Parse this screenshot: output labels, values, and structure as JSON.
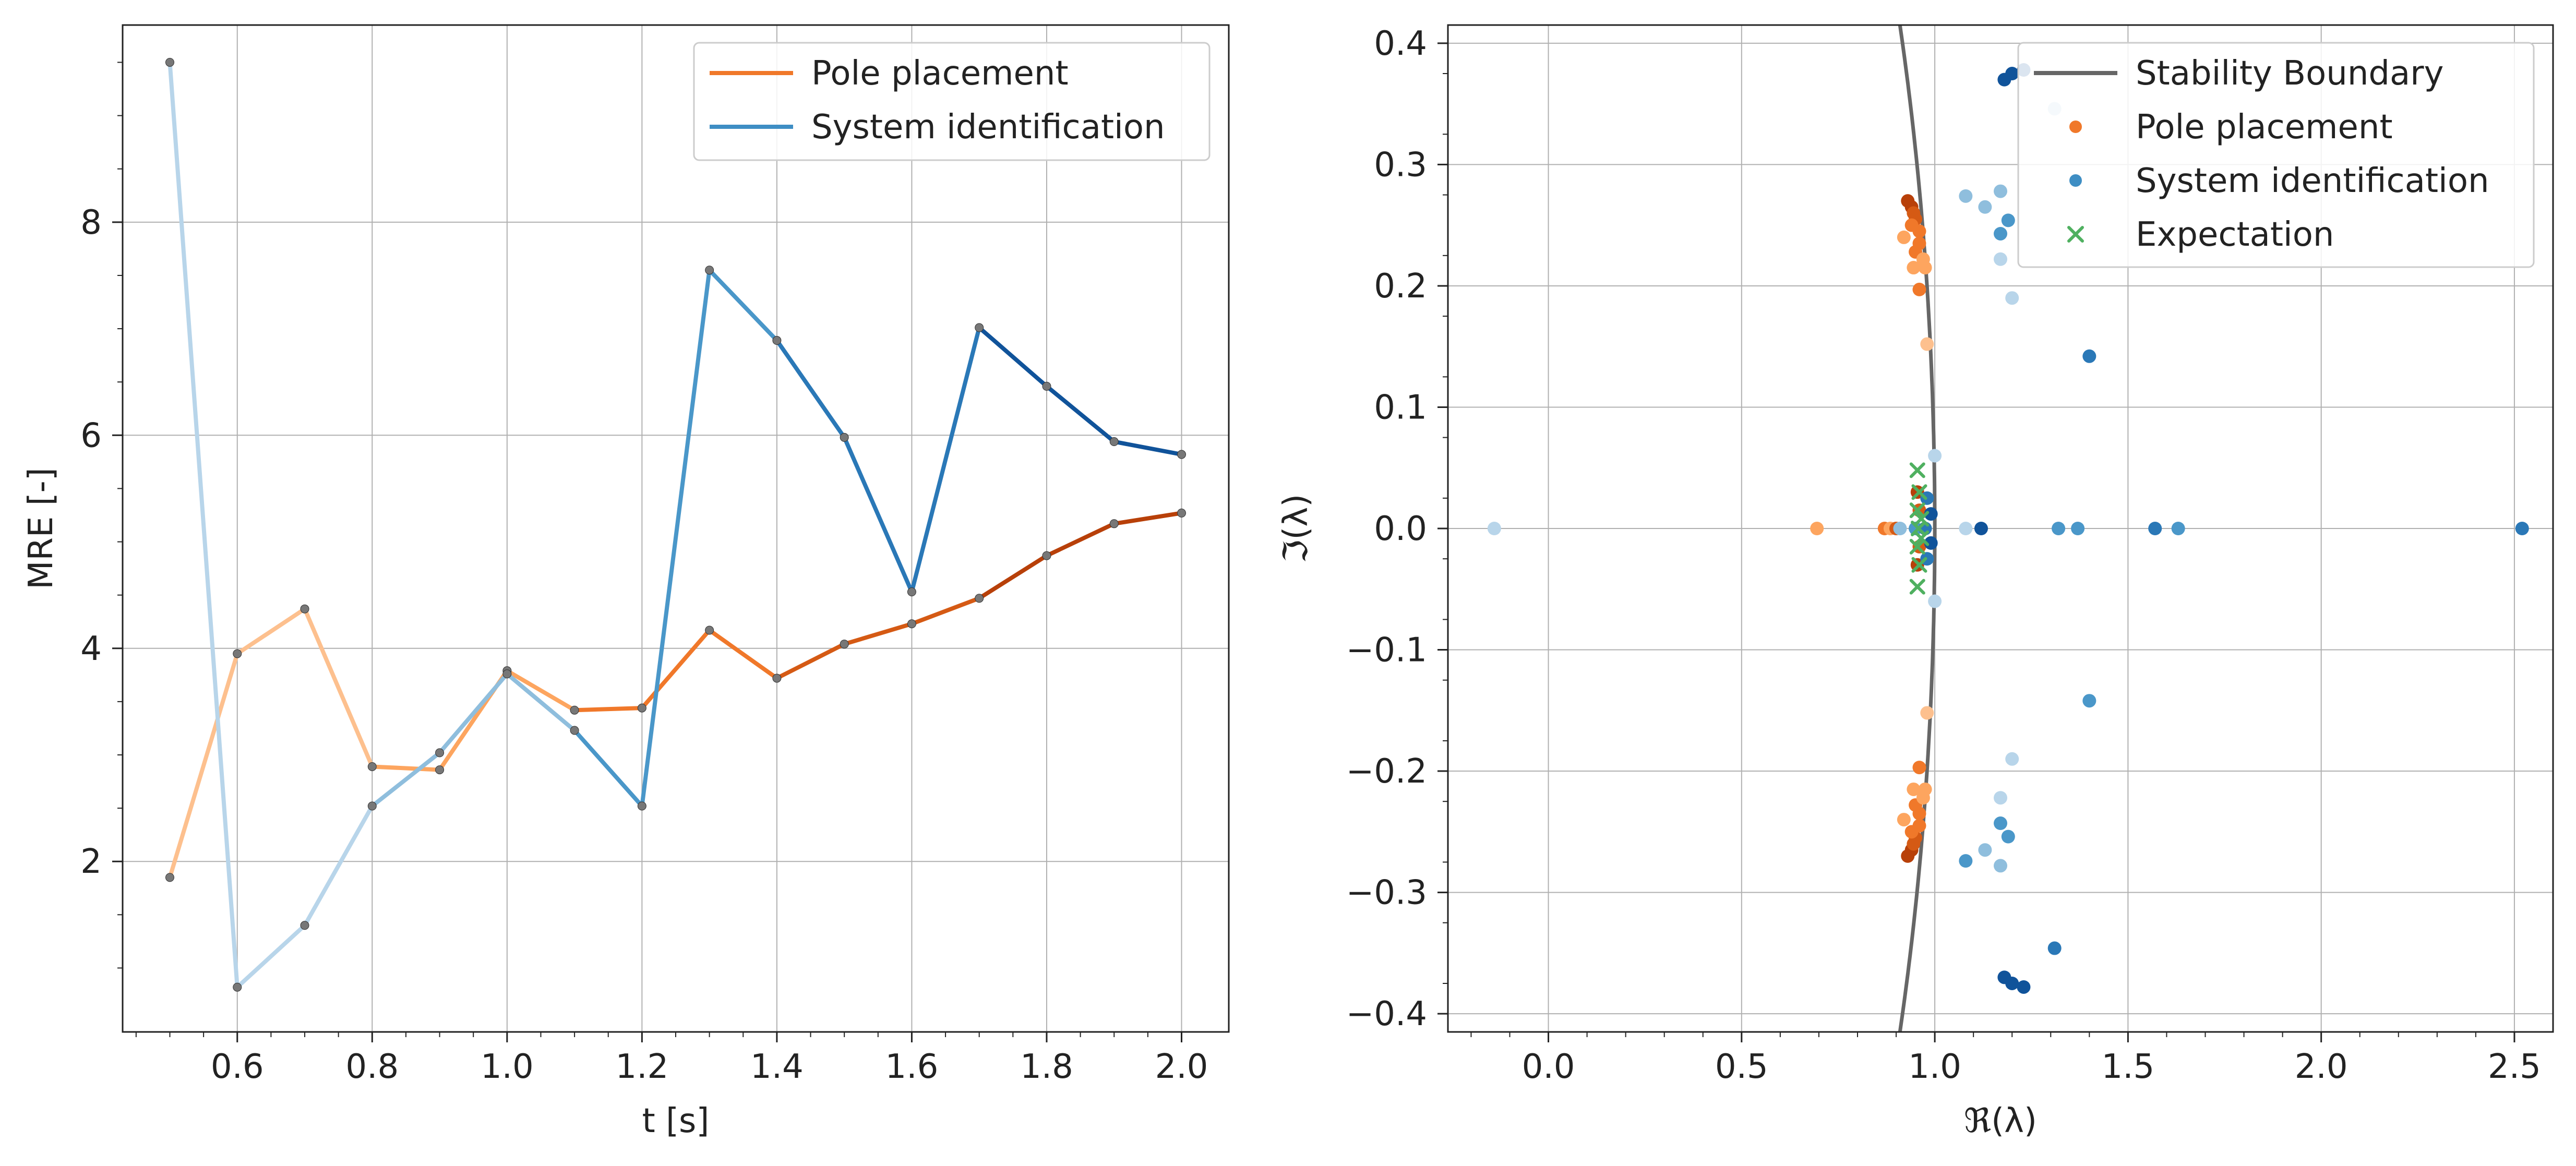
{
  "colors": {
    "pole": "#f0782a",
    "sysid": "#3e8ec4",
    "boundary": "#666666",
    "expect": "#4fb060",
    "pole_grad": [
      "#fdc08e",
      "#fda55f",
      "#f0782a",
      "#d55a14",
      "#b84009"
    ],
    "sysid_grad": [
      "#b8d5ea",
      "#8fbedd",
      "#4a97c9",
      "#2a78b7",
      "#10539a"
    ]
  },
  "chart_data": [
    {
      "type": "line",
      "xlabel": "t [s]",
      "ylabel": "MRE [-]",
      "xlim": [
        0.43,
        2.07
      ],
      "ylim": [
        0.4,
        9.85
      ],
      "xticks": [
        "0.6",
        "0.8",
        "1.0",
        "1.2",
        "1.4",
        "1.6",
        "1.8",
        "2.0"
      ],
      "yticks": [
        "2",
        "4",
        "6",
        "8"
      ],
      "grid": true,
      "legend_position": "top-right",
      "x": [
        0.5,
        0.6,
        0.7,
        0.8,
        0.9,
        1.0,
        1.1,
        1.2,
        1.3,
        1.4,
        1.5,
        1.6,
        1.7,
        1.8,
        1.9,
        2.0
      ],
      "series": [
        {
          "name": "Pole placement",
          "values": [
            1.85,
            3.95,
            4.37,
            2.89,
            2.86,
            3.79,
            3.42,
            3.44,
            4.17,
            3.72,
            4.04,
            4.23,
            4.47,
            4.87,
            5.17,
            5.27
          ]
        },
        {
          "name": "System identification",
          "values": [
            9.5,
            0.82,
            1.4,
            2.52,
            3.02,
            3.76,
            3.23,
            2.52,
            7.55,
            6.89,
            5.98,
            4.53,
            7.01,
            6.46,
            5.94,
            5.82
          ]
        }
      ]
    },
    {
      "type": "scatter",
      "xlabel": "ℜ(λ)",
      "ylabel": "ℑ(λ)",
      "xlim": [
        -0.26,
        2.6
      ],
      "ylim": [
        -0.415,
        0.415
      ],
      "xticks": [
        "0.0",
        "0.5",
        "1.0",
        "1.5",
        "2.0",
        "2.5"
      ],
      "yticks": [
        "−0.4",
        "−0.3",
        "−0.2",
        "−0.1",
        "0.0",
        "0.1",
        "0.2",
        "0.3",
        "0.4"
      ],
      "grid": true,
      "legend_position": "top-right",
      "legend": [
        "Stability Boundary",
        "Pole placement",
        "System identification",
        "Expectation"
      ],
      "boundary_radius": 1.0,
      "pole_placement": [
        [
          0.93,
          0.27,
          4
        ],
        [
          0.94,
          0.265,
          4
        ],
        [
          0.945,
          0.26,
          3
        ],
        [
          0.95,
          0.255,
          3
        ],
        [
          0.94,
          0.25,
          2
        ],
        [
          0.96,
          0.245,
          2
        ],
        [
          0.92,
          0.24,
          1
        ],
        [
          0.96,
          0.235,
          2
        ],
        [
          0.95,
          0.228,
          2
        ],
        [
          0.97,
          0.222,
          1
        ],
        [
          0.945,
          0.215,
          1
        ],
        [
          0.975,
          0.215,
          1
        ],
        [
          0.96,
          0.197,
          2
        ],
        [
          0.98,
          0.152,
          0
        ],
        [
          0.93,
          -0.27,
          4
        ],
        [
          0.94,
          -0.265,
          4
        ],
        [
          0.945,
          -0.26,
          3
        ],
        [
          0.95,
          -0.255,
          3
        ],
        [
          0.94,
          -0.25,
          2
        ],
        [
          0.96,
          -0.245,
          2
        ],
        [
          0.92,
          -0.24,
          1
        ],
        [
          0.96,
          -0.235,
          2
        ],
        [
          0.95,
          -0.228,
          2
        ],
        [
          0.97,
          -0.222,
          1
        ],
        [
          0.945,
          -0.215,
          1
        ],
        [
          0.975,
          -0.215,
          1
        ],
        [
          0.96,
          -0.197,
          2
        ],
        [
          0.98,
          -0.152,
          0
        ],
        [
          0.695,
          0.0,
          1
        ],
        [
          0.87,
          0.0,
          2
        ],
        [
          0.885,
          0.0,
          1
        ],
        [
          0.9,
          0.0,
          3
        ],
        [
          0.955,
          0.03,
          4
        ],
        [
          0.955,
          -0.03,
          4
        ],
        [
          0.96,
          0.015,
          3
        ],
        [
          0.96,
          -0.015,
          3
        ]
      ],
      "system_identification": [
        [
          1.18,
          0.37,
          4
        ],
        [
          1.2,
          0.375,
          4
        ],
        [
          1.23,
          0.378,
          4
        ],
        [
          1.31,
          0.346,
          0
        ],
        [
          1.08,
          0.274,
          1
        ],
        [
          1.13,
          0.265,
          1
        ],
        [
          1.17,
          0.278,
          1
        ],
        [
          1.17,
          0.243,
          2
        ],
        [
          1.19,
          0.254,
          2
        ],
        [
          1.17,
          0.222,
          0
        ],
        [
          1.2,
          0.19,
          0
        ],
        [
          1.4,
          0.142,
          3
        ],
        [
          1.18,
          -0.37,
          4
        ],
        [
          1.2,
          -0.375,
          4
        ],
        [
          1.23,
          -0.378,
          4
        ],
        [
          1.31,
          -0.346,
          3
        ],
        [
          1.08,
          -0.274,
          2
        ],
        [
          1.13,
          -0.265,
          1
        ],
        [
          1.17,
          -0.278,
          1
        ],
        [
          1.17,
          -0.243,
          2
        ],
        [
          1.19,
          -0.254,
          2
        ],
        [
          1.17,
          -0.222,
          0
        ],
        [
          1.2,
          -0.19,
          0
        ],
        [
          1.4,
          -0.142,
          2
        ],
        [
          -0.14,
          0.0,
          0
        ],
        [
          0.91,
          0.0,
          1
        ],
        [
          0.95,
          0.0,
          2
        ],
        [
          1.0,
          0.06,
          0
        ],
        [
          1.0,
          -0.06,
          0
        ],
        [
          1.08,
          0.0,
          0
        ],
        [
          1.12,
          0.0,
          4
        ],
        [
          1.32,
          0.0,
          2
        ],
        [
          1.37,
          0.0,
          2
        ],
        [
          1.57,
          0.0,
          3
        ],
        [
          1.63,
          0.0,
          2
        ],
        [
          2.52,
          0.0,
          3
        ],
        [
          0.98,
          0.025,
          3
        ],
        [
          0.98,
          -0.025,
          3
        ],
        [
          0.99,
          0.012,
          4
        ],
        [
          0.99,
          -0.012,
          4
        ],
        [
          0.975,
          0.0,
          3
        ]
      ],
      "expectation": [
        [
          0.955,
          0.048
        ],
        [
          0.955,
          -0.048
        ],
        [
          0.96,
          0.03
        ],
        [
          0.96,
          -0.03
        ],
        [
          0.955,
          0.015
        ],
        [
          0.955,
          -0.015
        ],
        [
          0.965,
          0.008
        ],
        [
          0.965,
          -0.008
        ],
        [
          0.958,
          0.0
        ]
      ]
    }
  ]
}
